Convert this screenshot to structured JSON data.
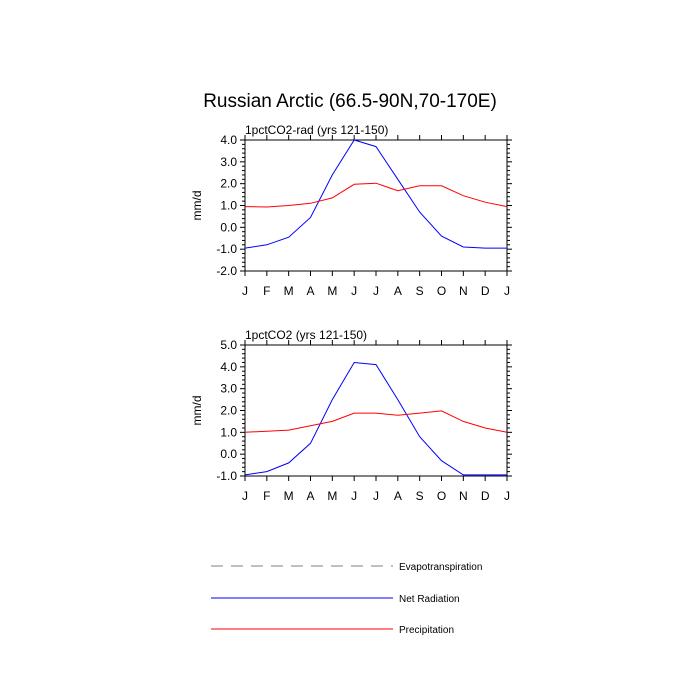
{
  "figure_title": "Russian Arctic (66.5-90N,70-170E)",
  "chart_data": [
    {
      "type": "line",
      "title": "1pctCO2-rad (yrs 121-150)",
      "ylabel": "mm/d",
      "xlabel": "",
      "x": [
        "J",
        "F",
        "M",
        "A",
        "M",
        "J",
        "J",
        "A",
        "S",
        "O",
        "N",
        "D",
        "J"
      ],
      "ylim": [
        -2.0,
        4.0
      ],
      "yticks": [
        "-2.0",
        "-1.0",
        "0.0",
        "1.0",
        "2.0",
        "3.0",
        "4.0"
      ],
      "series": [
        {
          "name": "Net Radiation",
          "color": "#0000ff",
          "values": [
            -0.95,
            -0.8,
            -0.45,
            0.45,
            2.4,
            4.0,
            3.7,
            2.2,
            0.7,
            -0.4,
            -0.9,
            -0.95,
            -0.95
          ]
        },
        {
          "name": "Precipitation",
          "color": "#ff0000",
          "values": [
            0.95,
            0.93,
            1.0,
            1.1,
            1.35,
            1.97,
            2.02,
            1.68,
            1.9,
            1.9,
            1.45,
            1.15,
            0.95
          ]
        }
      ]
    },
    {
      "type": "line",
      "title": "1pctCO2 (yrs 121-150)",
      "ylabel": "mm/d",
      "xlabel": "",
      "x": [
        "J",
        "F",
        "M",
        "A",
        "M",
        "J",
        "J",
        "A",
        "S",
        "O",
        "N",
        "D",
        "J"
      ],
      "ylim": [
        -1.0,
        5.0
      ],
      "yticks": [
        "-1.0",
        "0.0",
        "1.0",
        "2.0",
        "3.0",
        "4.0",
        "5.0"
      ],
      "series": [
        {
          "name": "Net Radiation",
          "color": "#0000ff",
          "values": [
            -0.95,
            -0.8,
            -0.4,
            0.5,
            2.5,
            4.2,
            4.1,
            2.5,
            0.8,
            -0.3,
            -0.95,
            -0.95,
            -0.95
          ]
        },
        {
          "name": "Precipitation",
          "color": "#ff0000",
          "values": [
            1.0,
            1.05,
            1.1,
            1.3,
            1.5,
            1.88,
            1.88,
            1.78,
            1.88,
            1.98,
            1.5,
            1.2,
            1.0
          ]
        }
      ]
    }
  ],
  "legend": [
    {
      "label": "Evapotranspiration",
      "color": "#808080",
      "style": "dashed"
    },
    {
      "label": "Net Radiation",
      "color": "#0000ff",
      "style": "solid"
    },
    {
      "label": "Precipitation",
      "color": "#ff0000",
      "style": "solid"
    }
  ]
}
